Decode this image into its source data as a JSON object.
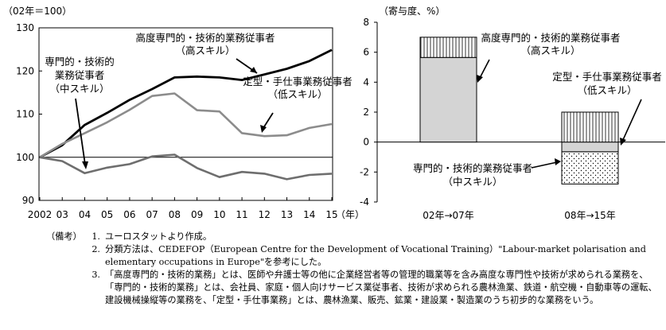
{
  "chart_data": [
    {
      "type": "line",
      "ylabel": "（02年＝100）",
      "xunit": "（年）",
      "ylim": [
        90,
        130
      ],
      "yticks": [
        "90",
        "100",
        "110",
        "120",
        "130"
      ],
      "categories": [
        "2002",
        "03",
        "04",
        "05",
        "06",
        "07",
        "08",
        "09",
        "10",
        "11",
        "12",
        "13",
        "14",
        "15"
      ],
      "reference_line": 100,
      "series": [
        {
          "name": "高度専門的・技術的業務従事者",
          "sub": "（高スキル）",
          "color": "#000000",
          "values": [
            100,
            102.8,
            107.5,
            110.3,
            113.3,
            115.8,
            118.5,
            118.7,
            118.5,
            117.9,
            119.2,
            120.5,
            122.3,
            124.9
          ]
        },
        {
          "name": "定型・手仕事業務従事者",
          "sub": "（低スキル）",
          "color": "#8c8c8c",
          "values": [
            100,
            103.1,
            105.6,
            108.1,
            111.0,
            114.2,
            114.8,
            110.9,
            110.6,
            105.6,
            104.9,
            105.1,
            106.8,
            107.7
          ]
        },
        {
          "name": "専門的・技術的業務従事者",
          "sub": "（中スキル）",
          "color": "#6e6e6e",
          "values": [
            100,
            99.1,
            96.3,
            97.6,
            98.4,
            100.2,
            100.6,
            97.5,
            95.4,
            96.6,
            96.2,
            94.9,
            95.9,
            96.2
          ]
        }
      ]
    },
    {
      "type": "bar",
      "stacked": true,
      "ylabel": "（寄与度、%）",
      "ylim": [
        -4,
        8
      ],
      "yticks": [
        "8",
        "6",
        "4",
        "2",
        "0",
        "-2",
        "-4"
      ],
      "categories": [
        "02年→07年",
        "08年→15年"
      ],
      "series": [
        {
          "name": "高度専門的・技術的業務従事者",
          "sub": "（高スキル）",
          "pattern": "vertical-lines",
          "values": [
            1.35,
            2.0
          ]
        },
        {
          "name": "定型・手仕事業務従事者",
          "sub": "（低スキル）",
          "pattern": "solid-gray",
          "values": [
            5.65,
            -0.65
          ]
        },
        {
          "name": "専門的・技術的業務従事者",
          "sub": "（中スキル）",
          "pattern": "dots",
          "values": [
            0,
            -2.15
          ]
        }
      ]
    }
  ],
  "notes": {
    "head": "（備考）",
    "items": [
      {
        "num": "1.",
        "text": "ユーロスタットより作成。"
      },
      {
        "num": "2.",
        "text": "分類方法は、CEDEFOP（European Centre for the Development of Vocational Training）\"Labour-market polarisation and elementary occupations in Europe\"を参考にした。"
      },
      {
        "num": "3.",
        "text": "「高度専門的・技術的業務」とは、医師や弁護士等の他に企業経営者等の管理的職業等を含み高度な専門性や技術が求められる業務を、「専門的・技術的業務」とは、会社員、家庭・個人向けサービス業従事者、技術が求められる農林漁業、鉄道・航空機・自動車等の運転、建設機械操縦等の業務を、「定型・手仕事業務」とは、農林漁業、販売、鉱業・建設業・製造業のうち初步的な業務をいう。"
      }
    ]
  }
}
